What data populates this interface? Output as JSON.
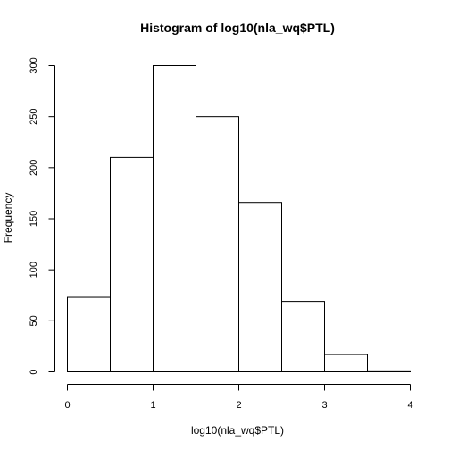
{
  "chart_data": {
    "type": "bar",
    "title": "Histogram of log10(nla_wq$PTL)",
    "xlabel": "log10(nla_wq$PTL)",
    "ylabel": "Frequency",
    "bin_edges": [
      0,
      0.5,
      1,
      1.5,
      2,
      2.5,
      3,
      3.5,
      4
    ],
    "values": [
      73,
      210,
      300,
      250,
      166,
      69,
      17,
      1
    ],
    "xlim": [
      0,
      4
    ],
    "ylim": [
      0,
      300
    ],
    "xticks": [
      0,
      1,
      2,
      3,
      4
    ],
    "yticks": [
      0,
      50,
      100,
      150,
      200,
      250,
      300
    ],
    "grid": false,
    "colors": {
      "bar_fill": "#ffffff",
      "bar_stroke": "#000000"
    }
  }
}
